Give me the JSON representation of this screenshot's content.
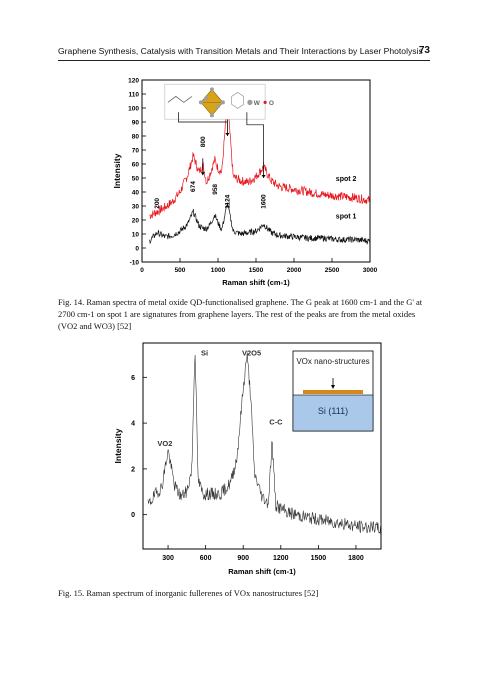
{
  "header": {
    "title": "Graphene Synthesis, Catalysis with Transition Metals and Their Interactions by Laser Photolysis",
    "page_number": "73"
  },
  "figures": [
    {
      "caption": "Fig. 14. Raman spectra of metal oxide QD-functionalised graphene. The G peak at 1600 cm-1 and the G' at 2700 cm-1 on spot 1 are signatures from graphene layers. The rest of the peaks are from the metal oxides (VO2 and WO3) [52]"
    },
    {
      "caption": "Fig. 15. Raman spectrum of inorganic fullerenes of VOx nanostructures [52]"
    }
  ],
  "chart_data": [
    {
      "type": "line",
      "xlabel": "Raman shift (cm-1)",
      "ylabel": "Intensity",
      "xlim": [
        0,
        3000
      ],
      "ylim": [
        -10,
        120
      ],
      "x_ticks": [
        "0",
        "500",
        "1000",
        "1500",
        "2000",
        "2500",
        "3000"
      ],
      "y_ticks": [
        "-10",
        "0",
        "10",
        "20",
        "30",
        "40",
        "50",
        "60",
        "70",
        "80",
        "90",
        "100",
        "110",
        "120"
      ],
      "series": [
        {
          "name": "spot 2",
          "color": "#e8141c",
          "x": [
            100,
            200,
            300,
            400,
            500,
            600,
            674,
            750,
            800,
            850,
            900,
            958,
            1000,
            1050,
            1124,
            1200,
            1300,
            1400,
            1500,
            1600,
            1700,
            1800,
            2000,
            2200,
            2400,
            2600,
            2800,
            3000
          ],
          "y": [
            23,
            26,
            29,
            33,
            40,
            52,
            66,
            54,
            60,
            47,
            54,
            63,
            57,
            54,
            105,
            51,
            48,
            47,
            51,
            58,
            48,
            44,
            42,
            40,
            38,
            37,
            36,
            34
          ]
        },
        {
          "name": "spot 1",
          "color": "#111111",
          "x": [
            100,
            200,
            300,
            400,
            500,
            600,
            674,
            750,
            800,
            850,
            900,
            958,
            1000,
            1050,
            1124,
            1200,
            1300,
            1400,
            1500,
            1600,
            1700,
            1800,
            2000,
            2200,
            2400,
            2600,
            2800,
            3000
          ],
          "y": [
            5,
            11,
            8,
            9,
            12,
            17,
            26,
            16,
            14,
            14,
            17,
            24,
            18,
            13,
            32,
            12,
            10,
            11,
            12,
            17,
            11,
            9,
            8,
            7,
            7,
            6,
            6,
            5
          ]
        }
      ],
      "peak_labels": [
        "200",
        "674",
        "800",
        "958",
        "1124",
        "1600"
      ],
      "annotations": [
        "spot 2",
        "spot 1"
      ],
      "inset_legend": [
        "W",
        "O"
      ]
    },
    {
      "type": "line",
      "xlabel": "Raman shift (cm-1)",
      "ylabel": "Intensity",
      "xlim": [
        100,
        2000
      ],
      "ylim": [
        -1.5,
        7.5
      ],
      "x_ticks": [
        "300",
        "600",
        "900",
        "1200",
        "1500",
        "1800"
      ],
      "y_ticks": [
        "0",
        "2",
        "4",
        "6"
      ],
      "series": [
        {
          "color": "#333333",
          "x": [
            140,
            200,
            250,
            300,
            350,
            400,
            450,
            490,
            515,
            540,
            580,
            650,
            720,
            800,
            850,
            900,
            930,
            960,
            990,
            1050,
            1100,
            1130,
            1160,
            1250,
            1400,
            1600,
            1800,
            2000
          ],
          "y": [
            0.4,
            0.9,
            1.2,
            2.8,
            1.3,
            0.8,
            1.0,
            2.0,
            7.4,
            1.5,
            0.9,
            0.9,
            0.9,
            1.4,
            2.5,
            5.5,
            7.0,
            5.2,
            1.8,
            0.8,
            0.5,
            3.2,
            0.4,
            0.1,
            -0.1,
            -0.3,
            -0.5,
            -0.6
          ]
        }
      ],
      "annotations": [
        "Si",
        "V2O5",
        "C-C",
        "VO2"
      ],
      "inset": {
        "label_top": "VOx nano-structures",
        "substrate_label": "Si (111)",
        "substrate_color": "#a9c8ea",
        "film_color": "#d4891e"
      }
    }
  ]
}
